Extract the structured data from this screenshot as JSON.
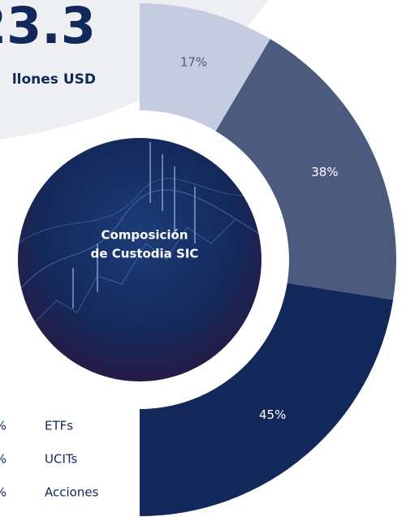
{
  "chart_data": {
    "type": "half-donut",
    "headline": "23.3",
    "headline_unit": "llones USD",
    "center_label": [
      "Composición",
      "de Custodia SIC"
    ],
    "categories": [
      "ETFs",
      "UCITs",
      "Acciones"
    ],
    "legend_values": [
      "%",
      "%",
      "%"
    ],
    "values": [
      17,
      38,
      45
    ],
    "value_labels": [
      "17%",
      "38%",
      "45%"
    ],
    "colors": [
      "#c5cce0",
      "#4b5a7d",
      "#13285a"
    ]
  }
}
